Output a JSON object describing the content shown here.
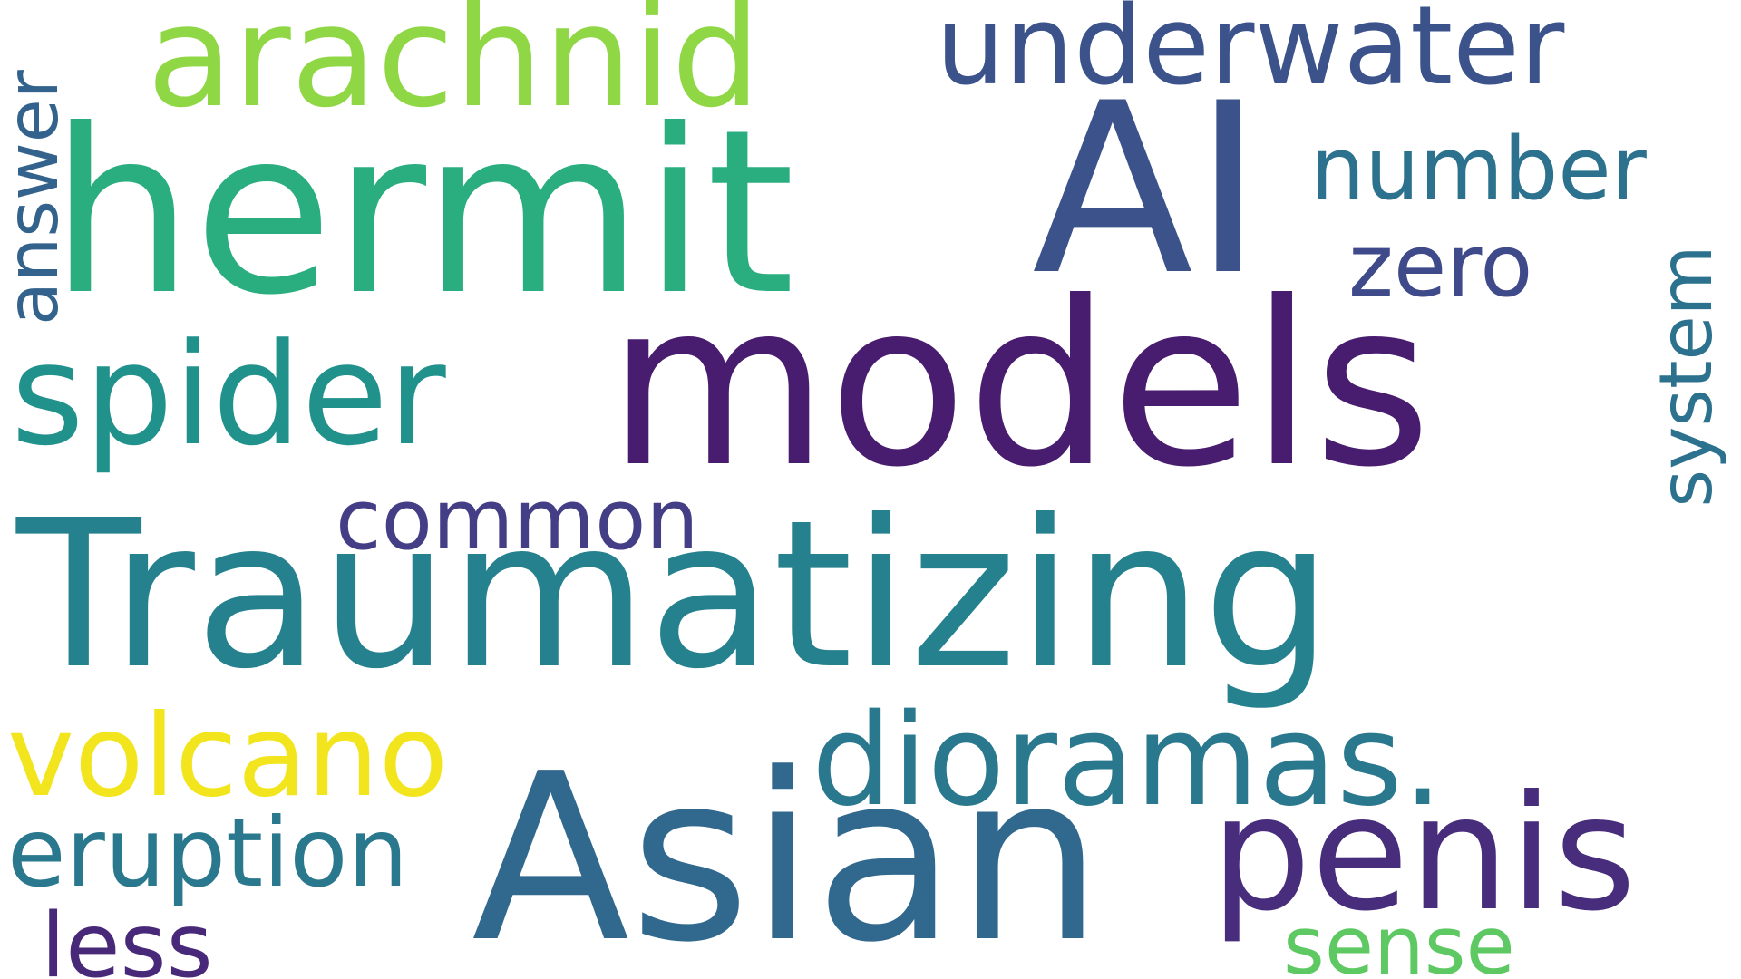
{
  "words": {
    "traumatizing": {
      "text": "Traumatizing",
      "color": "#26818e"
    },
    "models": {
      "text": "models",
      "color": "#481c6e"
    },
    "hermit": {
      "text": "hermit",
      "color": "#2aae80"
    },
    "ai": {
      "text": "AI",
      "color": "#3b528b"
    },
    "asian": {
      "text": "Asian",
      "color": "#31688e"
    },
    "penis": {
      "text": "penis",
      "color": "#472d7b"
    },
    "arachnid": {
      "text": "arachnid",
      "color": "#8fd744"
    },
    "spider": {
      "text": "spider",
      "color": "#21918c"
    },
    "underwater": {
      "text": "underwater",
      "color": "#3b528b"
    },
    "dioramas": {
      "text": "dioramas.",
      "color": "#2a788e"
    },
    "volcano": {
      "text": "volcano",
      "color": "#f2e51d"
    },
    "eruption": {
      "text": "eruption",
      "color": "#2a788e"
    },
    "answer": {
      "text": "answer",
      "color": "#33638d"
    },
    "number": {
      "text": "number",
      "color": "#2c728e"
    },
    "zero": {
      "text": "zero",
      "color": "#3e4a89"
    },
    "system": {
      "text": "system",
      "color": "#2c728e"
    },
    "common": {
      "text": "common",
      "color": "#433e85"
    },
    "less": {
      "text": "less",
      "color": "#482878"
    },
    "sense": {
      "text": "sense",
      "color": "#5ec962"
    }
  }
}
